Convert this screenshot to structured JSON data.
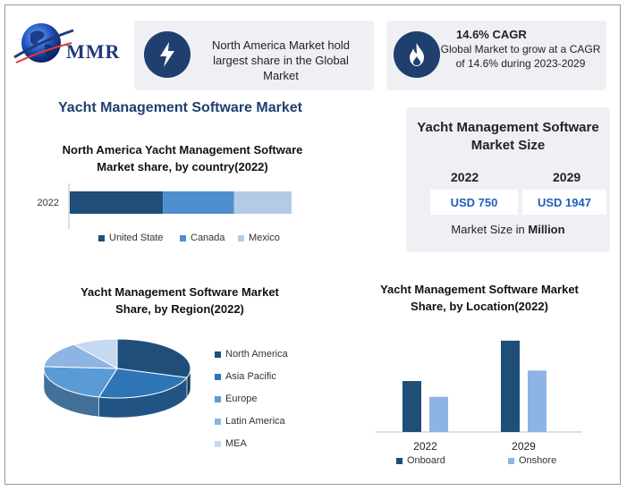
{
  "logo": {
    "text": "MMR"
  },
  "info_left": {
    "text": "North America Market hold largest share in the Global Market",
    "icon": "lightning-bolt-icon"
  },
  "info_right": {
    "title": "14.6% CAGR",
    "text": "Global Market to grow at a CAGR of 14.6% during 2023-2029",
    "icon": "flame-icon"
  },
  "main_title": "Yacht Management Software Market",
  "market_size": {
    "title": "Yacht Management Software Market Size",
    "year_a": "2022",
    "year_b": "2029",
    "value_a": "USD 750",
    "value_b": "USD 1947",
    "unit_prefix": "Market Size in ",
    "unit": "Million"
  },
  "colors": {
    "navy": "#1f4e79",
    "mid": "#4f8fd0",
    "light": "#b4cbe6",
    "brand": "#1f3f6f"
  },
  "chart_data": [
    {
      "type": "bar",
      "orientation": "horizontal-stacked",
      "title": "North America Yacht Management Software Market share, by country(2022)",
      "categories": [
        "2022"
      ],
      "series": [
        {
          "name": "United State",
          "values": [
            42
          ],
          "color": "#1f4e79"
        },
        {
          "name": "Canada",
          "values": [
            32
          ],
          "color": "#4f8fd0"
        },
        {
          "name": "Mexico",
          "values": [
            26
          ],
          "color": "#b4cbe6"
        }
      ]
    },
    {
      "type": "pie",
      "title": "Yacht Management Software Market Share, by Region(2022)",
      "labels": [
        "North America",
        "Asia Pacific",
        "Europe",
        "Latin America",
        "MEA"
      ],
      "values": [
        30,
        24,
        22,
        14,
        10
      ],
      "colors": [
        "#1f4e79",
        "#2e75b6",
        "#5b9bd5",
        "#8eb4e3",
        "#c5d9f1"
      ]
    },
    {
      "type": "bar",
      "title": "Yacht Management Software Market Share, by Location(2022)",
      "categories": [
        "2022",
        "2029"
      ],
      "series": [
        {
          "name": "Onboard",
          "values": [
            58,
            104
          ],
          "color": "#1f4e79"
        },
        {
          "name": "Onshore",
          "values": [
            40,
            70
          ],
          "color": "#8eb4e3"
        }
      ],
      "ylim": [
        0,
        110
      ]
    }
  ]
}
